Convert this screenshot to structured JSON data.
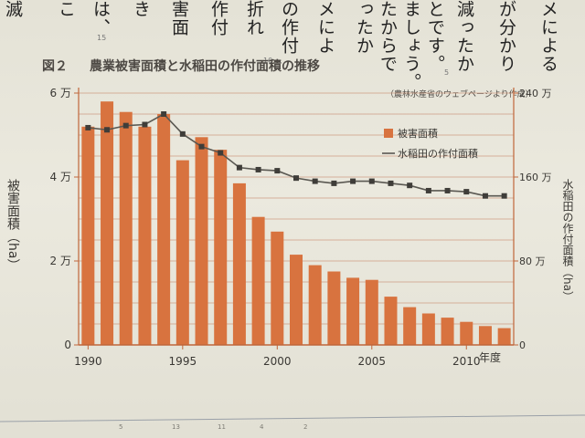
{
  "body_text": {
    "columns": [
      "滅",
      "こ",
      "は、",
      "き",
      "害面",
      "作付",
      "折れ",
      "の作付",
      "メによ",
      "とです。",
      "ましょう。",
      "ったか",
      "たからで",
      "減ったか",
      "が分かり",
      "メによる"
    ],
    "page_numbers": [
      "15",
      "10",
      "5"
    ]
  },
  "figure": {
    "label": "図２",
    "title": "農業被害面積と水稲田の作付面積の推移",
    "source": "（農林水産省のウェブページより作成）",
    "left_axis_title": "被害面積（ha）",
    "right_axis_title": "水稲田の作付面積（ha）"
  },
  "chart_data": {
    "type": "bar",
    "x_label": "年度",
    "x_ticks": [
      "1990",
      "1995",
      "2000",
      "2005",
      "2010"
    ],
    "x": [
      1990,
      1991,
      1992,
      1993,
      1994,
      1995,
      1996,
      1997,
      1998,
      1999,
      2000,
      2001,
      2002,
      2003,
      2004,
      2005,
      2006,
      2007,
      2008,
      2009,
      2010,
      2011,
      2012
    ],
    "series": [
      {
        "name": "被害面積",
        "axis": "left",
        "type": "bar",
        "color": "#d8733f",
        "values": [
          52000,
          58000,
          55500,
          52000,
          55000,
          44000,
          49500,
          46500,
          38500,
          30500,
          27000,
          21500,
          19000,
          17500,
          16000,
          15500,
          11500,
          9000,
          7500,
          6500,
          5500,
          4500,
          4000
        ]
      },
      {
        "name": "水稲田の作付面積",
        "axis": "right",
        "type": "line",
        "color": "#5a5852",
        "values": [
          2070000,
          2050000,
          2090000,
          2100000,
          2200000,
          2010000,
          1890000,
          1830000,
          1690000,
          1670000,
          1660000,
          1590000,
          1560000,
          1540000,
          1560000,
          1560000,
          1540000,
          1520000,
          1470000,
          1470000,
          1460000,
          1420000,
          1420000
        ]
      }
    ],
    "left_axis": {
      "ticks": [
        "0",
        "2 万",
        "4 万",
        "6 万"
      ],
      "tick_values": [
        0,
        20000,
        40000,
        60000
      ],
      "ylim": [
        0,
        60000
      ]
    },
    "right_axis": {
      "ticks": [
        "0",
        "80 万",
        "160 万",
        "240 万"
      ],
      "tick_values": [
        0,
        800000,
        1600000,
        2400000
      ],
      "ylim": [
        0,
        2400000
      ]
    },
    "legend": [
      "被害面積",
      "水稲田の作付面積"
    ],
    "legend_position": "top-right",
    "grid": true,
    "grid_color": "#c98a6e",
    "axis_color": "#c0663a"
  },
  "footer": {
    "ruler_marks": [
      "5",
      "13",
      "11",
      "4",
      "2"
    ]
  }
}
